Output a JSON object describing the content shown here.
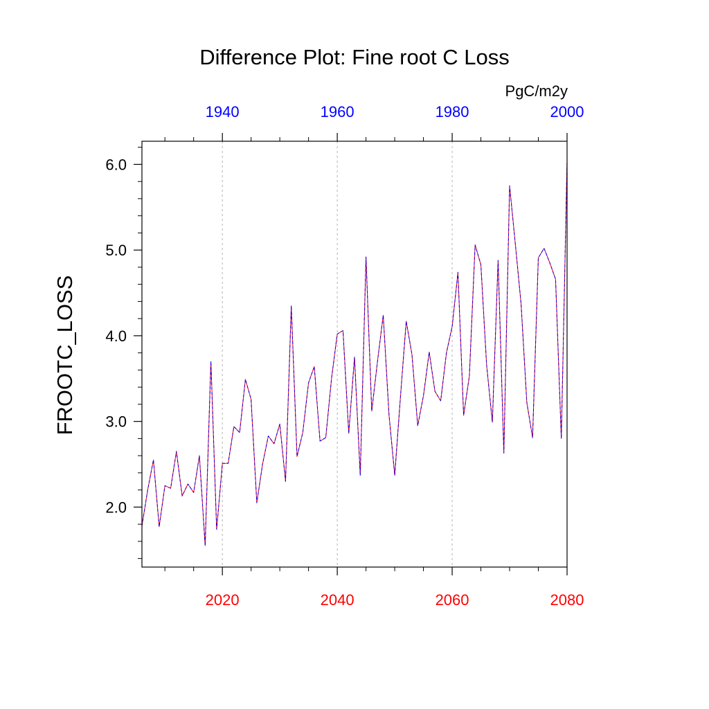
{
  "chart_data": {
    "type": "line",
    "title": "Difference Plot: Fine root C Loss",
    "units": "PgC/m2y",
    "ylabel": "FROOTC_LOSS",
    "xlabel": "",
    "xlim": [
      2006,
      2080
    ],
    "ylim": [
      1.3,
      6.27
    ],
    "y_ticks": [
      "2.0",
      "3.0",
      "4.0",
      "5.0",
      "6.0"
    ],
    "x_ticks_bottom": [
      "2020",
      "2040",
      "2060",
      "2080"
    ],
    "x_ticks_top": [
      "1940",
      "1960",
      "1980",
      "2000"
    ],
    "top_axis_offset_years": -80,
    "grid": "vertical dashed at major bottom ticks",
    "colors": {
      "bottom_axis_labels": "#ff0000",
      "top_axis_labels": "#0000ff",
      "series_a": "#ff0000",
      "series_b": "#0000ff",
      "grid": "#b0b0b0",
      "axis": "#000000"
    },
    "x": [
      2006,
      2007,
      2008,
      2009,
      2010,
      2011,
      2012,
      2013,
      2014,
      2015,
      2016,
      2017,
      2018,
      2019,
      2020,
      2021,
      2022,
      2023,
      2024,
      2025,
      2026,
      2027,
      2028,
      2029,
      2030,
      2031,
      2032,
      2033,
      2034,
      2035,
      2036,
      2037,
      2038,
      2039,
      2040,
      2041,
      2042,
      2043,
      2044,
      2045,
      2046,
      2047,
      2048,
      2049,
      2050,
      2051,
      2052,
      2053,
      2054,
      2055,
      2056,
      2057,
      2058,
      2059,
      2060,
      2061,
      2062,
      2063,
      2064,
      2065,
      2066,
      2067,
      2068,
      2069,
      2070,
      2071,
      2072,
      2073,
      2074,
      2075,
      2076,
      2077,
      2078,
      2079,
      2080
    ],
    "series": [
      {
        "values": [
          1.78,
          2.2,
          2.55,
          1.77,
          2.25,
          2.22,
          2.65,
          2.13,
          2.27,
          2.17,
          2.6,
          1.55,
          3.7,
          1.74,
          2.51,
          2.51,
          2.94,
          2.87,
          3.49,
          3.26,
          2.05,
          2.5,
          2.83,
          2.74,
          2.97,
          2.3,
          4.35,
          2.59,
          2.87,
          3.45,
          3.64,
          2.77,
          2.81,
          3.5,
          4.02,
          4.06,
          2.86,
          3.75,
          2.37,
          4.92,
          3.12,
          3.7,
          4.24,
          3.08,
          2.37,
          3.29,
          4.17,
          3.78,
          2.95,
          3.3,
          3.81,
          3.35,
          3.24,
          3.8,
          4.11,
          4.74,
          3.07,
          3.53,
          5.06,
          4.83,
          3.66,
          2.99,
          4.88,
          2.63,
          5.75,
          5.07,
          4.37,
          3.22,
          2.81,
          4.91,
          5.02,
          4.85,
          4.66,
          2.8,
          6.04
        ]
      },
      {
        "values": [
          1.78,
          2.2,
          2.55,
          1.77,
          2.25,
          2.22,
          2.65,
          2.13,
          2.27,
          2.17,
          2.6,
          1.55,
          3.7,
          1.74,
          2.51,
          2.51,
          2.94,
          2.87,
          3.49,
          3.26,
          2.05,
          2.5,
          2.83,
          2.74,
          2.97,
          2.3,
          4.35,
          2.59,
          2.87,
          3.45,
          3.64,
          2.77,
          2.81,
          3.5,
          4.02,
          4.06,
          2.86,
          3.75,
          2.37,
          4.92,
          3.12,
          3.7,
          4.24,
          3.08,
          2.37,
          3.29,
          4.17,
          3.78,
          2.95,
          3.3,
          3.81,
          3.35,
          3.24,
          3.8,
          4.11,
          4.74,
          3.07,
          3.53,
          5.06,
          4.83,
          3.66,
          2.99,
          4.88,
          2.63,
          5.75,
          5.07,
          4.37,
          3.22,
          2.81,
          4.91,
          5.02,
          4.85,
          4.66,
          2.8,
          6.04
        ]
      }
    ]
  }
}
